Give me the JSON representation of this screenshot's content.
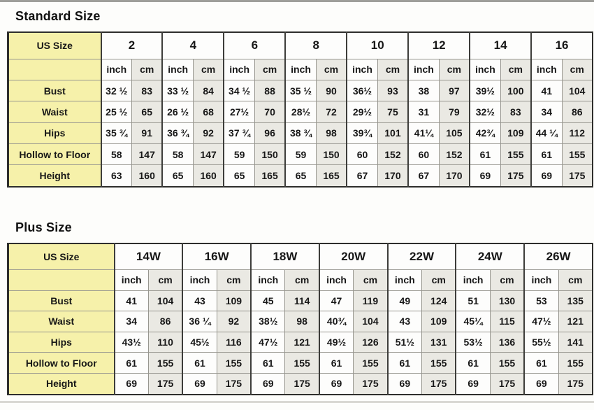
{
  "page": {
    "background": "#fdfdfb"
  },
  "chart_data": [
    {
      "type": "table",
      "title": "Standard Size",
      "corner_label": "US Size",
      "unit_labels": [
        "inch",
        "cm"
      ],
      "sizes": [
        "2",
        "4",
        "6",
        "8",
        "10",
        "12",
        "14",
        "16"
      ],
      "rows": [
        {
          "label": "Bust",
          "values": [
            "32 ½",
            "83",
            "33 ½",
            "84",
            "34 ½",
            "88",
            "35 ½",
            "90",
            "36½",
            "93",
            "38",
            "97",
            "39½",
            "100",
            "41",
            "104"
          ]
        },
        {
          "label": "Waist",
          "values": [
            "25 ½",
            "65",
            "26 ½",
            "68",
            "27½",
            "70",
            "28½",
            "72",
            "29½",
            "75",
            "31",
            "79",
            "32½",
            "83",
            "34",
            "86"
          ]
        },
        {
          "label": "Hips",
          "values": [
            "35 ¾",
            "91",
            "36 ¾",
            "92",
            "37 ¾",
            "96",
            "38 ¾",
            "98",
            "39¾",
            "101",
            "41¼",
            "105",
            "42¾",
            "109",
            "44 ¼",
            "112"
          ]
        },
        {
          "label": "Hollow to Floor",
          "values": [
            "58",
            "147",
            "58",
            "147",
            "59",
            "150",
            "59",
            "150",
            "60",
            "152",
            "60",
            "152",
            "61",
            "155",
            "61",
            "155"
          ]
        },
        {
          "label": "Height",
          "values": [
            "63",
            "160",
            "65",
            "160",
            "65",
            "165",
            "65",
            "165",
            "67",
            "170",
            "67",
            "170",
            "69",
            "175",
            "69",
            "175"
          ]
        }
      ]
    },
    {
      "type": "table",
      "title": "Plus Size",
      "corner_label": "US Size",
      "unit_labels": [
        "inch",
        "cm"
      ],
      "sizes": [
        "14W",
        "16W",
        "18W",
        "20W",
        "22W",
        "24W",
        "26W"
      ],
      "rows": [
        {
          "label": "Bust",
          "values": [
            "41",
            "104",
            "43",
            "109",
            "45",
            "114",
            "47",
            "119",
            "49",
            "124",
            "51",
            "130",
            "53",
            "135"
          ]
        },
        {
          "label": "Waist",
          "values": [
            "34",
            "86",
            "36 ¼",
            "92",
            "38½",
            "98",
            "40¾",
            "104",
            "43",
            "109",
            "45¼",
            "115",
            "47½",
            "121"
          ]
        },
        {
          "label": "Hips",
          "values": [
            "43½",
            "110",
            "45½",
            "116",
            "47½",
            "121",
            "49½",
            "126",
            "51½",
            "131",
            "53½",
            "136",
            "55½",
            "141"
          ]
        },
        {
          "label": "Hollow to Floor",
          "values": [
            "61",
            "155",
            "61",
            "155",
            "61",
            "155",
            "61",
            "155",
            "61",
            "155",
            "61",
            "155",
            "61",
            "155"
          ]
        },
        {
          "label": "Height",
          "values": [
            "69",
            "175",
            "69",
            "175",
            "69",
            "175",
            "69",
            "175",
            "69",
            "175",
            "69",
            "175",
            "69",
            "175"
          ]
        }
      ]
    }
  ],
  "colors": {
    "label_column": "#f6f1aa",
    "inch_column": "#fdfdfc",
    "cm_column": "#eae9e3",
    "grid_line": "#97968f",
    "group_line": "#3d3d3a",
    "outer_border": "#2e2e2c",
    "text": "#171717"
  }
}
